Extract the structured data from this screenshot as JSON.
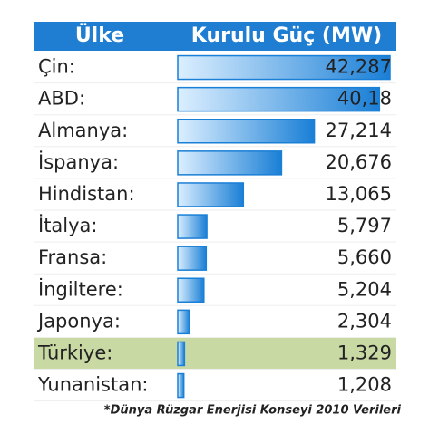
{
  "chart_data": {
    "type": "bar",
    "orientation": "horizontal",
    "column_headers": [
      "Ülke",
      "Kurulu Güç (MW)"
    ],
    "categories": [
      "Çin:",
      "ABD:",
      "Almanya:",
      "İspanya:",
      "Hindistan:",
      "İtalya:",
      "Fransa:",
      "İngiltere:",
      "Japonya:",
      "Türkiye:",
      "Yunanistan:"
    ],
    "values": [
      42.287,
      40.18,
      27.214,
      20.676,
      13.065,
      5.797,
      5.66,
      5.204,
      2.304,
      1.329,
      1.208
    ],
    "value_labels": [
      "42,287",
      "40,18",
      "27,214",
      "20,676",
      "13,065",
      "5,797",
      "5,660",
      "5,204",
      "2,304",
      "1,329",
      "1,208"
    ],
    "color": "#1a7fd6",
    "header_color": "#1f7ed2",
    "highlight": {
      "category": 9,
      "color": "#c9d9a3"
    },
    "source": "*Dünya Rüzgar Enerjisi Konseyi 2010 Verileri"
  }
}
